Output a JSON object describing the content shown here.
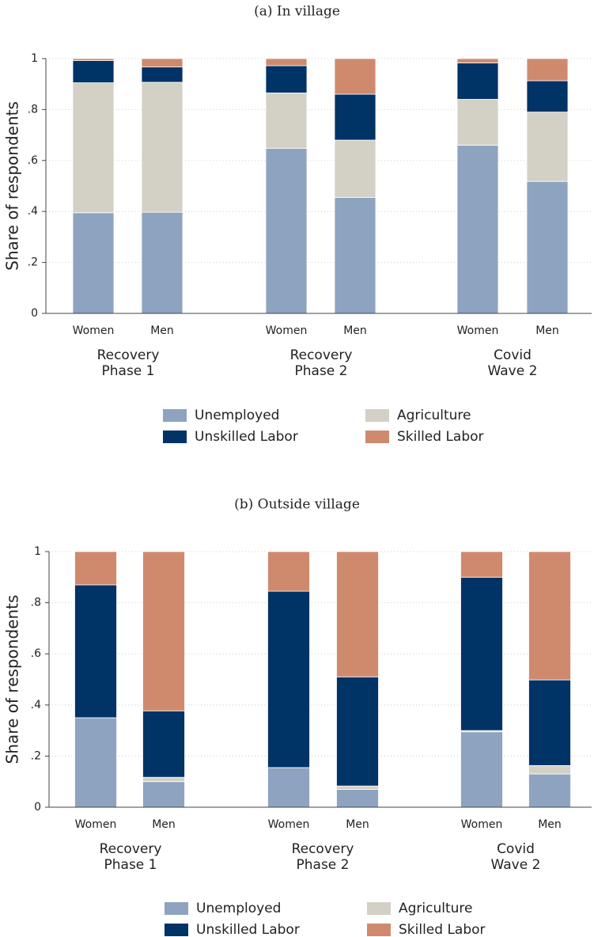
{
  "chart_data": [
    {
      "type": "bar",
      "stacked": true,
      "title": "(a) In village",
      "ylabel": "Share of respondents",
      "ylim": [
        0,
        1
      ],
      "yticks": [
        "0",
        ".2",
        ".4",
        ".6",
        ".8",
        "1"
      ],
      "yticks_values": [
        0,
        0.2,
        0.4,
        0.6,
        0.8,
        1
      ],
      "grid": true,
      "groups": [
        {
          "label_line1": "Recovery",
          "label_line2": "Phase 1"
        },
        {
          "label_line1": "Recovery",
          "label_line2": "Phase 2"
        },
        {
          "label_line1": "Covid",
          "label_line2": "Wave 2"
        }
      ],
      "bar_labels": [
        "Women",
        "Men"
      ],
      "series": [
        {
          "name": "Unemployed",
          "color": "#8ea3bf",
          "values": [
            0.395,
            0.397,
            0.648,
            0.455,
            0.66,
            0.518
          ]
        },
        {
          "name": "Agriculture",
          "color": "#d3d0c6",
          "values": [
            0.51,
            0.51,
            0.217,
            0.225,
            0.18,
            0.272
          ]
        },
        {
          "name": "Unskilled Labor",
          "color": "#003366",
          "values": [
            0.087,
            0.06,
            0.107,
            0.18,
            0.143,
            0.123
          ]
        },
        {
          "name": "Skilled Labor",
          "color": "#cf8a6e",
          "values": [
            0.008,
            0.033,
            0.028,
            0.14,
            0.017,
            0.087
          ]
        }
      ],
      "legend": [
        "Unemployed",
        "Agriculture",
        "Unskilled Labor",
        "Skilled Labor"
      ]
    },
    {
      "type": "bar",
      "stacked": true,
      "title": "(b) Outside village",
      "ylabel": "Share of respondents",
      "ylim": [
        0,
        1
      ],
      "yticks": [
        "0",
        ".2",
        ".4",
        ".6",
        ".8",
        "1"
      ],
      "yticks_values": [
        0,
        0.2,
        0.4,
        0.6,
        0.8,
        1
      ],
      "grid": true,
      "groups": [
        {
          "label_line1": "Recovery",
          "label_line2": "Phase 1"
        },
        {
          "label_line1": "Recovery",
          "label_line2": "Phase 2"
        },
        {
          "label_line1": "Covid",
          "label_line2": "Wave 2"
        }
      ],
      "bar_labels": [
        "Women",
        "Men"
      ],
      "series": [
        {
          "name": "Unemployed",
          "color": "#8ea3bf",
          "values": [
            0.35,
            0.1,
            0.155,
            0.07,
            0.295,
            0.13
          ]
        },
        {
          "name": "Agriculture",
          "color": "#d3d0c6",
          "values": [
            0.0,
            0.017,
            0.0,
            0.013,
            0.005,
            0.033
          ]
        },
        {
          "name": "Unskilled Labor",
          "color": "#003366",
          "values": [
            0.52,
            0.26,
            0.69,
            0.427,
            0.6,
            0.335
          ]
        },
        {
          "name": "Skilled Labor",
          "color": "#cf8a6e",
          "values": [
            0.13,
            0.623,
            0.155,
            0.49,
            0.1,
            0.502
          ]
        }
      ],
      "legend": [
        "Unemployed",
        "Agriculture",
        "Unskilled Labor",
        "Skilled Labor"
      ]
    }
  ]
}
